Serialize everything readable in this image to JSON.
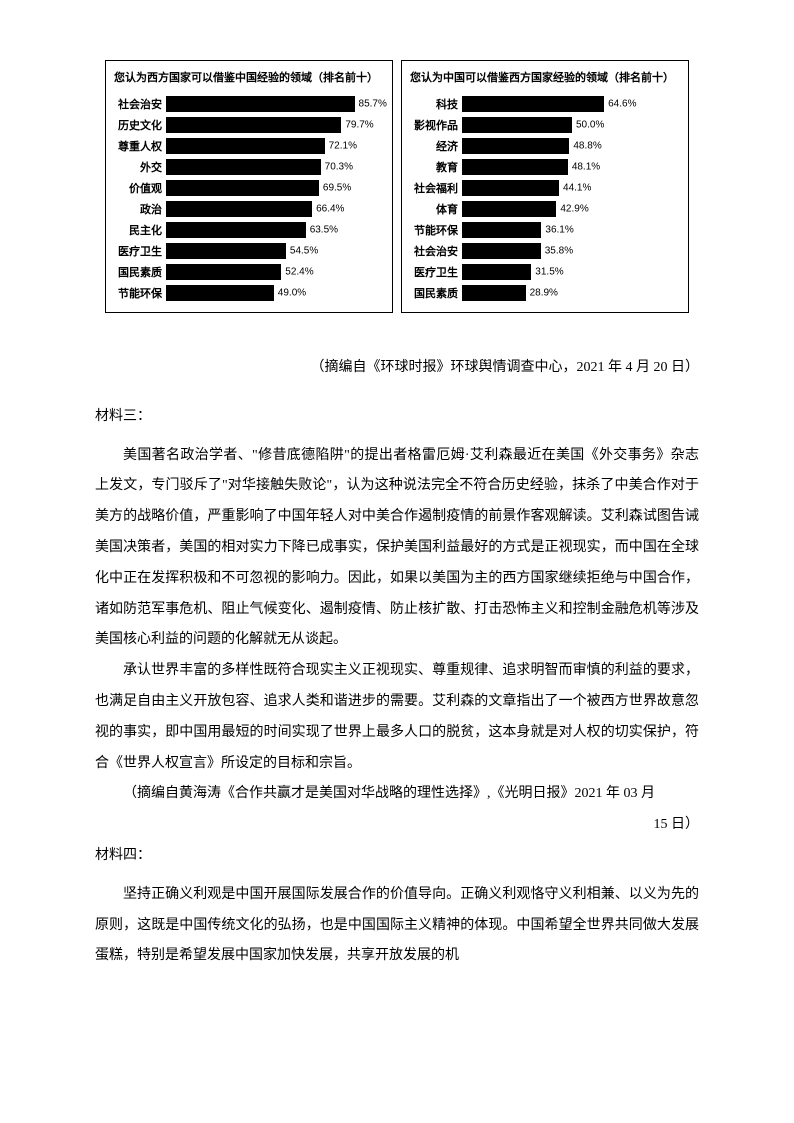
{
  "left_chart": {
    "type": "bar",
    "title": "您认为西方国家可以借鉴中国经验的领域（排名前十）",
    "max_pct": 100,
    "bar_color": "#000000",
    "background_color": "#ffffff",
    "label_fontsize": 11,
    "value_fontsize": 10,
    "rows": [
      {
        "label": "社会治安",
        "value": 85.7,
        "display": "85.7%"
      },
      {
        "label": "历史文化",
        "value": 79.7,
        "display": "79.7%"
      },
      {
        "label": "尊重人权",
        "value": 72.1,
        "display": "72.1%"
      },
      {
        "label": "外交",
        "value": 70.3,
        "display": "70.3%"
      },
      {
        "label": "价值观",
        "value": 69.5,
        "display": "69.5%"
      },
      {
        "label": "政治",
        "value": 66.4,
        "display": "66.4%"
      },
      {
        "label": "民主化",
        "value": 63.5,
        "display": "63.5%"
      },
      {
        "label": "医疗卫生",
        "value": 54.5,
        "display": "54.5%"
      },
      {
        "label": "国民素质",
        "value": 52.4,
        "display": "52.4%"
      },
      {
        "label": "节能环保",
        "value": 49.0,
        "display": "49.0%"
      }
    ]
  },
  "right_chart": {
    "type": "bar",
    "title": "您认为中国可以借鉴西方国家经验的领域（排名前十）",
    "max_pct": 100,
    "bar_color": "#000000",
    "background_color": "#ffffff",
    "label_fontsize": 11,
    "value_fontsize": 10,
    "rows": [
      {
        "label": "科技",
        "value": 64.6,
        "display": "64.6%"
      },
      {
        "label": "影视作品",
        "value": 50.0,
        "display": "50.0%"
      },
      {
        "label": "经济",
        "value": 48.8,
        "display": "48.8%"
      },
      {
        "label": "教育",
        "value": 48.1,
        "display": "48.1%"
      },
      {
        "label": "社会福利",
        "value": 44.1,
        "display": "44.1%"
      },
      {
        "label": "体育",
        "value": 42.9,
        "display": "42.9%"
      },
      {
        "label": "节能环保",
        "value": 36.1,
        "display": "36.1%"
      },
      {
        "label": "社会治安",
        "value": 35.8,
        "display": "35.8%"
      },
      {
        "label": "医疗卫生",
        "value": 31.5,
        "display": "31.5%"
      },
      {
        "label": "国民素质",
        "value": 28.9,
        "display": "28.9%"
      }
    ]
  },
  "chart_source": "（摘编自《环球时报》环球舆情调查中心，2021 年 4 月 20 日）",
  "material3_heading": "材料三：",
  "material3_para1": "美国著名政治学者、\"修昔底德陷阱\"的提出者格雷厄姆·艾利森最近在美国《外交事务》杂志上发文，专门驳斥了\"对华接触失败论\"，认为这种说法完全不符合历史经验，抹杀了中美合作对于美方的战略价值，严重影响了中国年轻人对中美合作遏制疫情的前景作客观解读。艾利森试图告诫美国决策者，美国的相对实力下降已成事实，保护美国利益最好的方式是正视现实，而中国在全球化中正在发挥积极和不可忽视的影响力。因此，如果以美国为主的西方国家继续拒绝与中国合作，诸如防范军事危机、阻止气候变化、遏制疫情、防止核扩散、打击恐怖主义和控制金融危机等涉及美国核心利益的问题的化解就无从谈起。",
  "material3_para2": "承认世界丰富的多样性既符合现实主义正视现实、尊重规律、追求明智而审慎的利益的要求，也满足自由主义开放包容、追求人类和谐进步的需要。艾利森的文章指出了一个被西方世界故意忽视的事实，即中国用最短的时间实现了世界上最多人口的脱贫，这本身就是对人权的切实保护，符合《世界人权宣言》所设定的目标和宗旨。",
  "material3_source1": "（摘编自黄海涛《合作共赢才是美国对华战略的理性选择》,《光明日报》2021 年 03 月",
  "material3_source2": "15 日）",
  "material4_heading": "材料四：",
  "material4_para1": "坚持正确义利观是中国开展国际发展合作的价值导向。正确义利观恪守义利相兼、以义为先的原则，这既是中国传统文化的弘扬，也是中国国际主义精神的体现。中国希望全世界共同做大发展蛋糕，特别是希望发展中国家加快发展，共享开放发展的机"
}
